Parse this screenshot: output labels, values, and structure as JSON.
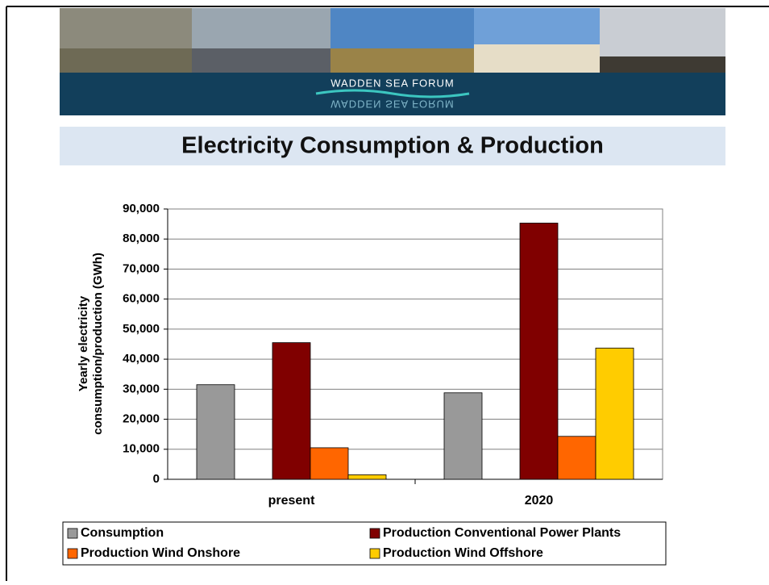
{
  "header": {
    "title": "WADDEN SEA FORUM"
  },
  "chart_data": {
    "type": "bar",
    "title": "Electricity Consumption & Production",
    "y_label": [
      "Yearly electricity",
      "consumption/production (GWh)"
    ],
    "categories": [
      "present",
      "2020"
    ],
    "series": [
      {
        "name": "Consumption",
        "color": "#999999",
        "values": [
          31500,
          28800
        ]
      },
      {
        "name": "Production Conventional Power Plants",
        "color": "#800000",
        "values": [
          45500,
          85300
        ]
      },
      {
        "name": "Production Wind Onshore",
        "color": "#ff6600",
        "values": [
          10500,
          14300
        ]
      },
      {
        "name": "Production Wind Offshore",
        "color": "#ffcc00",
        "values": [
          1500,
          43700
        ]
      }
    ],
    "ylim": [
      0,
      90000
    ],
    "yticks": [
      0,
      {
        "value": 10000,
        "label": "10,000"
      },
      {
        "value": 20000,
        "label": "20,000"
      },
      {
        "value": 30000,
        "label": "30,000"
      },
      {
        "value": 40000,
        "label": "40,000"
      },
      {
        "value": 50000,
        "label": "50,000"
      },
      {
        "value": 60000,
        "label": "60,000"
      },
      {
        "value": 70000,
        "label": "70,000"
      },
      {
        "value": 80000,
        "label": "80,000"
      },
      {
        "value": 90000,
        "label": "90,000"
      }
    ],
    "grid": true,
    "legend": "bottom"
  }
}
